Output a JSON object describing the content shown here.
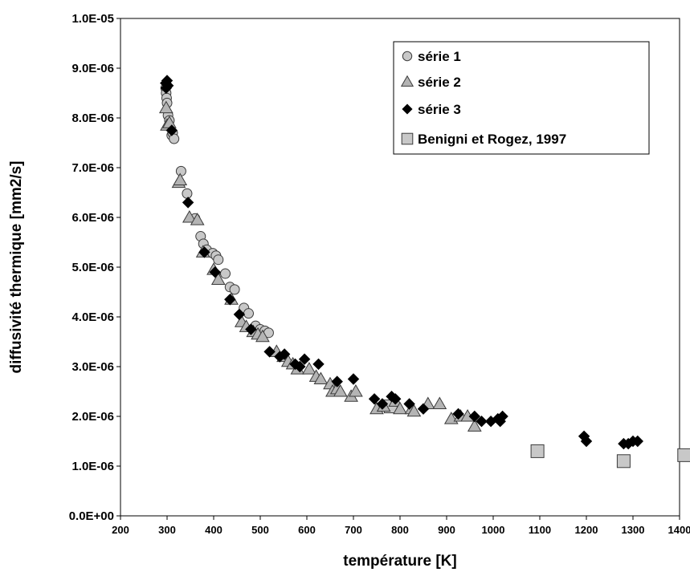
{
  "chart_data": {
    "type": "scatter",
    "title": "",
    "xlabel": "température [K]",
    "ylabel": "diffusivité thermique [mm2/s]",
    "xlim": [
      200,
      1400
    ],
    "ylim": [
      0,
      1e-05
    ],
    "x_ticks": [
      200,
      300,
      400,
      500,
      600,
      700,
      800,
      900,
      1000,
      1100,
      1200,
      1300,
      1400
    ],
    "x_tick_labels": [
      "200",
      "300",
      "400",
      "500",
      "600",
      "700",
      "800",
      "900",
      "1000",
      "1100",
      "1200",
      "1300",
      "1400"
    ],
    "y_ticks": [
      0,
      1e-06,
      2e-06,
      3e-06,
      4e-06,
      5e-06,
      6e-06,
      7e-06,
      8e-06,
      9e-06,
      1e-05
    ],
    "y_tick_labels": [
      "0.0E+00",
      "1.0E-06",
      "2.0E-06",
      "3.0E-06",
      "4.0E-06",
      "5.0E-06",
      "6.0E-06",
      "7.0E-06",
      "8.0E-06",
      "9.0E-06",
      "1.0E-05"
    ],
    "grid": false,
    "legend_position": "top-right",
    "series": [
      {
        "name": "série 1",
        "marker": "circle",
        "color": "#c8c8c8",
        "x": [
          297,
          298,
          299,
          300,
          302,
          305,
          310,
          312,
          315,
          330,
          343,
          360,
          372,
          378,
          385,
          398,
          405,
          410,
          425,
          435,
          445,
          465,
          475,
          490,
          500,
          510,
          518
        ],
        "y": [
          8.6e-06,
          8.5e-06,
          8.4e-06,
          8.3e-06,
          8.05e-06,
          7.95e-06,
          7.65e-06,
          7.7e-06,
          7.58e-06,
          6.93e-06,
          6.48e-06,
          5.98e-06,
          5.62e-06,
          5.47e-06,
          5.35e-06,
          5.28e-06,
          5.23e-06,
          5.15e-06,
          4.87e-06,
          4.6e-06,
          4.55e-06,
          4.18e-06,
          4.07e-06,
          3.82e-06,
          3.75e-06,
          3.72e-06,
          3.68e-06
        ]
      },
      {
        "name": "série 2",
        "marker": "triangle",
        "color": "#b4b4b4",
        "x": [
          298,
          300,
          305,
          325,
          328,
          348,
          365,
          377,
          400,
          410,
          438,
          460,
          470,
          485,
          495,
          505,
          535,
          550,
          560,
          570,
          580,
          605,
          620,
          630,
          650,
          655,
          665,
          672,
          695,
          705,
          750,
          765,
          790,
          800,
          825,
          830,
          860,
          885,
          910,
          930,
          945,
          960
        ],
        "y": [
          8.2e-06,
          7.85e-06,
          7.9e-06,
          6.7e-06,
          6.75e-06,
          6e-06,
          5.95e-06,
          5.3e-06,
          4.95e-06,
          4.75e-06,
          4.35e-06,
          3.9e-06,
          3.8e-06,
          3.7e-06,
          3.65e-06,
          3.6e-06,
          3.3e-06,
          3.2e-06,
          3.1e-06,
          3.05e-06,
          2.95e-06,
          2.95e-06,
          2.8e-06,
          2.75e-06,
          2.65e-06,
          2.5e-06,
          2.55e-06,
          2.5e-06,
          2.4e-06,
          2.5e-06,
          2.15e-06,
          2.2e-06,
          2.3e-06,
          2.15e-06,
          2.15e-06,
          2.1e-06,
          2.25e-06,
          2.25e-06,
          1.95e-06,
          2e-06,
          2e-06,
          1.8e-06
        ]
      },
      {
        "name": "série 3",
        "marker": "diamond",
        "color": "#000000",
        "x": [
          297,
          298,
          300,
          302,
          310,
          345,
          380,
          403,
          435,
          455,
          480,
          520,
          542,
          552,
          575,
          585,
          595,
          625,
          665,
          700,
          745,
          762,
          782,
          790,
          820,
          850,
          925,
          960,
          975,
          995,
          1010,
          1015,
          1020,
          1195,
          1200,
          1280,
          1290,
          1300,
          1310
        ],
        "y": [
          8.7e-06,
          8.6e-06,
          8.75e-06,
          8.65e-06,
          7.75e-06,
          6.3e-06,
          5.3e-06,
          4.9e-06,
          4.35e-06,
          4.05e-06,
          3.75e-06,
          3.3e-06,
          3.2e-06,
          3.25e-06,
          3.05e-06,
          3e-06,
          3.15e-06,
          3.05e-06,
          2.7e-06,
          2.75e-06,
          2.35e-06,
          2.25e-06,
          2.4e-06,
          2.35e-06,
          2.25e-06,
          2.15e-06,
          2.05e-06,
          2e-06,
          1.9e-06,
          1.9e-06,
          1.95e-06,
          1.9e-06,
          2e-06,
          1.6e-06,
          1.5e-06,
          1.45e-06,
          1.45e-06,
          1.5e-06,
          1.5e-06
        ]
      },
      {
        "name": "Benigni et Rogez, 1997",
        "marker": "square",
        "color": "#c8c8c8",
        "x": [
          780,
          1095,
          1280,
          1410
        ],
        "y": [
          2.2e-06,
          1.3e-06,
          1.1e-06,
          1.22e-06
        ]
      }
    ]
  }
}
